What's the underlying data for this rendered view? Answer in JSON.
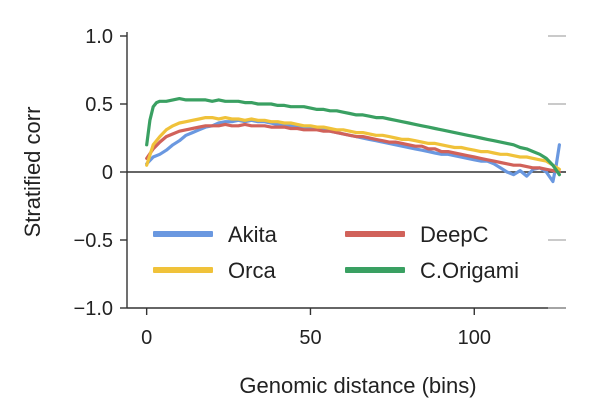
{
  "chart_data": {
    "type": "line",
    "title": "",
    "xlabel": "Genomic distance (bins)",
    "ylabel": "Stratified corr",
    "xlim": [
      -6,
      128
    ],
    "ylim": [
      -1.0,
      1.0
    ],
    "x_ticks": [
      0,
      50,
      100
    ],
    "x_tick_labels": [
      "0",
      "50",
      "100"
    ],
    "y_ticks": [
      1.0,
      0.5,
      0,
      -0.5,
      -1.0
    ],
    "y_tick_labels": [
      "1.0",
      "0.5",
      "0",
      "−0.5",
      "−1.0"
    ],
    "grid": false,
    "legend_position": "lower-left",
    "series": [
      {
        "name": "Akita",
        "color": "#6a98e0",
        "x": [
          0,
          2,
          4,
          6,
          8,
          10,
          12,
          14,
          16,
          18,
          20,
          22,
          24,
          26,
          28,
          30,
          32,
          34,
          36,
          38,
          40,
          42,
          44,
          46,
          48,
          50,
          52,
          54,
          56,
          58,
          60,
          62,
          64,
          66,
          68,
          70,
          72,
          74,
          76,
          78,
          80,
          82,
          84,
          86,
          88,
          90,
          92,
          94,
          96,
          98,
          100,
          102,
          104,
          106,
          108,
          110,
          112,
          114,
          116,
          118,
          120,
          122,
          124,
          125,
          126
        ],
        "values": [
          0.06,
          0.11,
          0.13,
          0.16,
          0.2,
          0.23,
          0.27,
          0.29,
          0.31,
          0.33,
          0.34,
          0.36,
          0.37,
          0.37,
          0.38,
          0.37,
          0.38,
          0.37,
          0.37,
          0.36,
          0.35,
          0.35,
          0.34,
          0.34,
          0.33,
          0.33,
          0.32,
          0.31,
          0.3,
          0.29,
          0.28,
          0.27,
          0.26,
          0.25,
          0.24,
          0.23,
          0.22,
          0.21,
          0.2,
          0.19,
          0.18,
          0.17,
          0.16,
          0.15,
          0.14,
          0.13,
          0.13,
          0.12,
          0.11,
          0.1,
          0.09,
          0.08,
          0.08,
          0.06,
          0.03,
          0.0,
          -0.02,
          0.01,
          -0.03,
          0.02,
          0.03,
          0.0,
          -0.07,
          0.05,
          0.2
        ]
      },
      {
        "name": "DeepC",
        "color": "#d1625a",
        "x": [
          0,
          2,
          4,
          6,
          8,
          10,
          12,
          14,
          16,
          18,
          20,
          22,
          24,
          26,
          28,
          30,
          32,
          34,
          36,
          38,
          40,
          42,
          44,
          46,
          48,
          50,
          52,
          54,
          56,
          58,
          60,
          62,
          64,
          66,
          68,
          70,
          72,
          74,
          76,
          78,
          80,
          82,
          84,
          86,
          88,
          90,
          92,
          94,
          96,
          98,
          100,
          102,
          104,
          106,
          108,
          110,
          112,
          114,
          116,
          118,
          120,
          122,
          124,
          126
        ],
        "values": [
          0.1,
          0.17,
          0.22,
          0.26,
          0.28,
          0.3,
          0.31,
          0.32,
          0.33,
          0.34,
          0.34,
          0.34,
          0.35,
          0.34,
          0.34,
          0.35,
          0.34,
          0.34,
          0.34,
          0.33,
          0.33,
          0.33,
          0.32,
          0.32,
          0.31,
          0.31,
          0.31,
          0.3,
          0.3,
          0.29,
          0.28,
          0.27,
          0.26,
          0.26,
          0.25,
          0.24,
          0.23,
          0.22,
          0.22,
          0.21,
          0.2,
          0.19,
          0.19,
          0.17,
          0.17,
          0.15,
          0.15,
          0.14,
          0.13,
          0.12,
          0.11,
          0.1,
          0.09,
          0.08,
          0.07,
          0.06,
          0.05,
          0.05,
          0.04,
          0.03,
          0.03,
          0.02,
          0.01,
          0.0
        ]
      },
      {
        "name": "Orca",
        "color": "#f0c23a",
        "x": [
          0,
          2,
          4,
          6,
          8,
          10,
          12,
          14,
          16,
          18,
          20,
          22,
          24,
          26,
          28,
          30,
          32,
          34,
          36,
          38,
          40,
          42,
          44,
          46,
          48,
          50,
          52,
          54,
          56,
          58,
          60,
          62,
          64,
          66,
          68,
          70,
          72,
          74,
          76,
          78,
          80,
          82,
          84,
          86,
          88,
          90,
          92,
          94,
          96,
          98,
          100,
          102,
          104,
          106,
          108,
          110,
          112,
          114,
          116,
          118,
          120,
          122,
          124,
          126
        ],
        "values": [
          0.05,
          0.2,
          0.26,
          0.31,
          0.34,
          0.36,
          0.37,
          0.38,
          0.39,
          0.4,
          0.4,
          0.39,
          0.4,
          0.39,
          0.39,
          0.38,
          0.39,
          0.38,
          0.38,
          0.37,
          0.37,
          0.36,
          0.36,
          0.35,
          0.34,
          0.34,
          0.33,
          0.33,
          0.32,
          0.31,
          0.31,
          0.3,
          0.29,
          0.29,
          0.28,
          0.27,
          0.27,
          0.26,
          0.25,
          0.24,
          0.24,
          0.23,
          0.22,
          0.21,
          0.21,
          0.2,
          0.19,
          0.18,
          0.18,
          0.17,
          0.16,
          0.15,
          0.15,
          0.14,
          0.13,
          0.13,
          0.12,
          0.11,
          0.11,
          0.1,
          0.09,
          0.08,
          0.05,
          0.02
        ]
      },
      {
        "name": "C.Origami",
        "color": "#3aa062",
        "x": [
          0,
          1,
          2,
          3,
          4,
          6,
          8,
          10,
          12,
          14,
          16,
          18,
          20,
          22,
          24,
          26,
          28,
          30,
          32,
          34,
          36,
          38,
          40,
          42,
          44,
          46,
          48,
          50,
          52,
          54,
          56,
          58,
          60,
          62,
          64,
          66,
          68,
          70,
          72,
          74,
          76,
          78,
          80,
          82,
          84,
          86,
          88,
          90,
          92,
          94,
          96,
          98,
          100,
          102,
          104,
          106,
          108,
          110,
          112,
          114,
          116,
          118,
          120,
          122,
          124,
          126
        ],
        "values": [
          0.2,
          0.38,
          0.48,
          0.51,
          0.52,
          0.52,
          0.53,
          0.54,
          0.53,
          0.53,
          0.53,
          0.53,
          0.52,
          0.53,
          0.52,
          0.52,
          0.52,
          0.51,
          0.51,
          0.5,
          0.5,
          0.5,
          0.49,
          0.49,
          0.48,
          0.48,
          0.48,
          0.47,
          0.46,
          0.46,
          0.45,
          0.45,
          0.44,
          0.43,
          0.42,
          0.42,
          0.41,
          0.4,
          0.4,
          0.39,
          0.38,
          0.37,
          0.36,
          0.35,
          0.34,
          0.33,
          0.32,
          0.31,
          0.3,
          0.29,
          0.28,
          0.27,
          0.26,
          0.25,
          0.24,
          0.23,
          0.22,
          0.21,
          0.2,
          0.18,
          0.17,
          0.15,
          0.13,
          0.1,
          0.05,
          -0.02
        ]
      }
    ]
  }
}
